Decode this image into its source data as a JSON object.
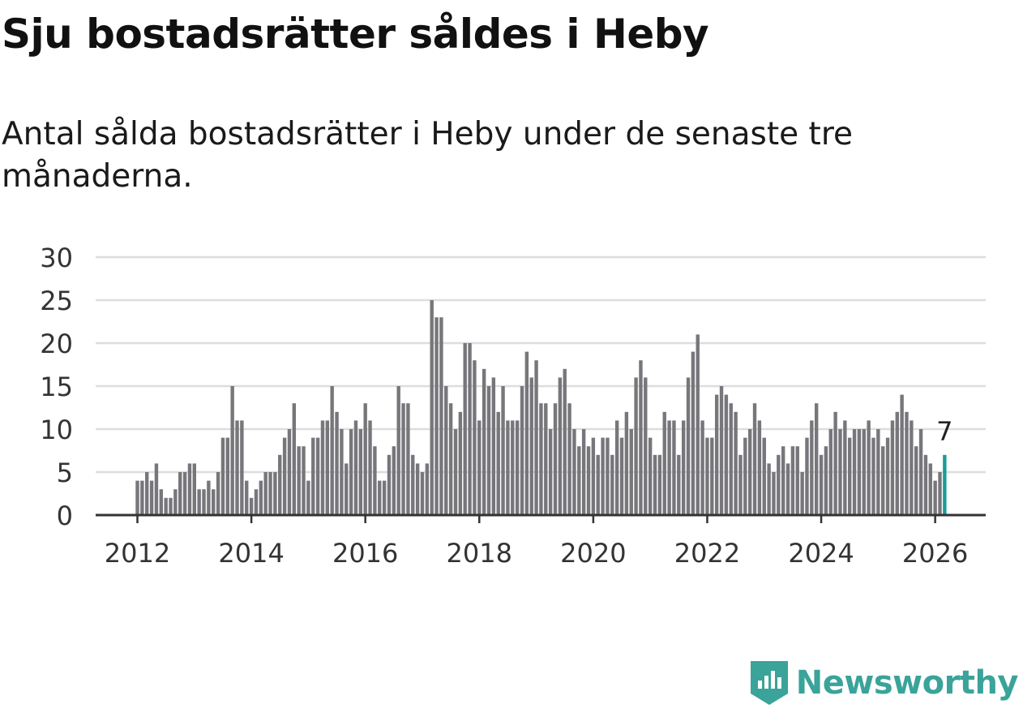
{
  "title": "Sju bostadsrätter såldes i Heby",
  "subtitle": "Antal sålda bostadsrätter i Heby under de senaste tre månaderna.",
  "brand": {
    "name": "Newsworthy",
    "color": "#3aa39a",
    "icon": "newsworthy-logo-icon"
  },
  "colors": {
    "bar": "#77767b",
    "highlight": "#1a9d97",
    "grid": "#dddddd",
    "axis": "#333333"
  },
  "chart_data": {
    "type": "bar",
    "title": "Sju bostadsrätter såldes i Heby",
    "xlabel": "",
    "ylabel": "",
    "ylim": [
      0,
      30
    ],
    "yticks": [
      0,
      5,
      10,
      15,
      20,
      25,
      30
    ],
    "xticks": [
      "2012",
      "2014",
      "2016",
      "2018",
      "2020",
      "2022",
      "2024",
      "2026"
    ],
    "start": "2012-01",
    "frequency": "monthly",
    "values": [
      4,
      4,
      5,
      4,
      6,
      3,
      2,
      2,
      3,
      5,
      5,
      6,
      6,
      3,
      3,
      4,
      3,
      5,
      9,
      9,
      15,
      11,
      11,
      4,
      2,
      3,
      4,
      5,
      5,
      5,
      7,
      9,
      10,
      13,
      8,
      8,
      4,
      9,
      9,
      11,
      11,
      15,
      12,
      10,
      6,
      10,
      11,
      10,
      13,
      11,
      8,
      4,
      4,
      7,
      8,
      15,
      13,
      13,
      7,
      6,
      5,
      6,
      25,
      23,
      23,
      15,
      13,
      10,
      12,
      20,
      20,
      18,
      11,
      17,
      15,
      16,
      12,
      15,
      11,
      11,
      11,
      15,
      19,
      16,
      18,
      13,
      13,
      10,
      13,
      16,
      17,
      13,
      10,
      8,
      10,
      8,
      9,
      7,
      9,
      9,
      7,
      11,
      9,
      12,
      10,
      16,
      18,
      16,
      9,
      7,
      7,
      12,
      11,
      11,
      7,
      11,
      16,
      19,
      21,
      11,
      9,
      9,
      14,
      15,
      14,
      13,
      12,
      7,
      9,
      10,
      13,
      11,
      9,
      6,
      5,
      7,
      8,
      6,
      8,
      8,
      5,
      9,
      11,
      13,
      7,
      8,
      10,
      12,
      10,
      11,
      9,
      10,
      10,
      10,
      11,
      9,
      10,
      8,
      9,
      11,
      12,
      14,
      12,
      11,
      8,
      10,
      7,
      6,
      4,
      5,
      7
    ],
    "highlight": {
      "index": 170,
      "label": "7"
    }
  }
}
